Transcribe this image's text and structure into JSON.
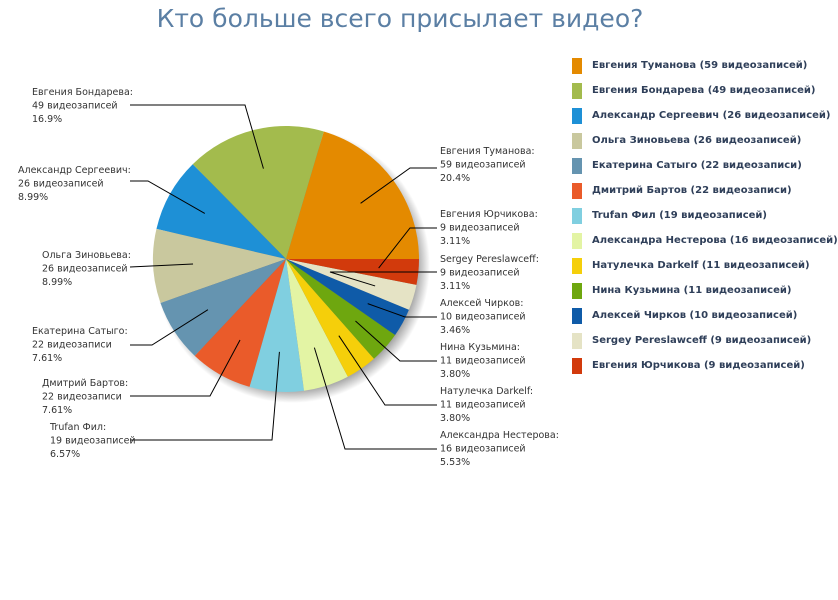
{
  "chart_data": {
    "type": "pie",
    "title": "Кто больше всего присылает видео?",
    "legend_position": "right",
    "slices": [
      {
        "name": "Евгения Туманова",
        "value": 59,
        "count_label": "59 видеозаписей",
        "percent": "20.4%",
        "legend": "Евгения Туманова (59 видеозаписей)",
        "color": "#e48a00"
      },
      {
        "name": "Евгения Бондарева",
        "value": 49,
        "count_label": "49 видеозаписей",
        "percent": "16.9%",
        "legend": "Евгения Бондарева (49 видеозаписей)",
        "color": "#a3bb4d"
      },
      {
        "name": "Александр Сергеевич",
        "value": 26,
        "count_label": "26 видеозаписей",
        "percent": "8.99%",
        "legend": "Александр Сергеевич (26 видеозаписей)",
        "color": "#1e90d6"
      },
      {
        "name": "Ольга Зиновьева",
        "value": 26,
        "count_label": "26 видеозаписей",
        "percent": "8.99%",
        "legend": "Ольга Зиновьева (26 видеозаписей)",
        "color": "#c9c89e"
      },
      {
        "name": "Екатерина Сатыго",
        "value": 22,
        "count_label": "22 видеозаписи",
        "percent": "7.61%",
        "legend": "Екатерина Сатыго (22 видеозаписи)",
        "color": "#6594b0"
      },
      {
        "name": "Дмитрий Бартов",
        "value": 22,
        "count_label": "22 видеозаписи",
        "percent": "7.61%",
        "legend": "Дмитрий Бартов (22 видеозаписи)",
        "color": "#ea5b2a"
      },
      {
        "name": "Trufan Фил",
        "value": 19,
        "count_label": "19 видеозаписей",
        "percent": "6.57%",
        "legend": "Trufan Фил (19 видеозаписей)",
        "color": "#80cfe0"
      },
      {
        "name": "Александра Нестерова",
        "value": 16,
        "count_label": "16 видеозаписей",
        "percent": "5.53%",
        "legend": "Александра Нестерова (16 видеозаписей)",
        "color": "#e3f4a4"
      },
      {
        "name": "Натулечка Darkelf",
        "value": 11,
        "count_label": "11 видеозаписей",
        "percent": "3.80%",
        "legend": "Натулечка Darkelf (11 видеозаписей)",
        "color": "#f5cf0a"
      },
      {
        "name": "Нина Кузьмина",
        "value": 11,
        "count_label": "11 видеозаписей",
        "percent": "3.80%",
        "legend": "Нина Кузьмина (11 видеозаписей)",
        "color": "#6ea70f"
      },
      {
        "name": "Алексей Чирков",
        "value": 10,
        "count_label": "10 видеозаписей",
        "percent": "3.46%",
        "legend": "Алексей Чирков (10 видеозаписей)",
        "color": "#0f5ba8"
      },
      {
        "name": "Sergey Pereslawceff",
        "value": 9,
        "count_label": "9 видеозаписей",
        "percent": "3.11%",
        "legend": "Sergey Pereslawceff (9 видеозаписей)",
        "color": "#e5e3c5"
      },
      {
        "name": "Евгения Юрчикова",
        "value": 9,
        "count_label": "9 видеозаписей",
        "percent": "3.11%",
        "legend": "Евгения Юрчикова (9 видеозаписей)",
        "color": "#d23a0c"
      }
    ]
  }
}
